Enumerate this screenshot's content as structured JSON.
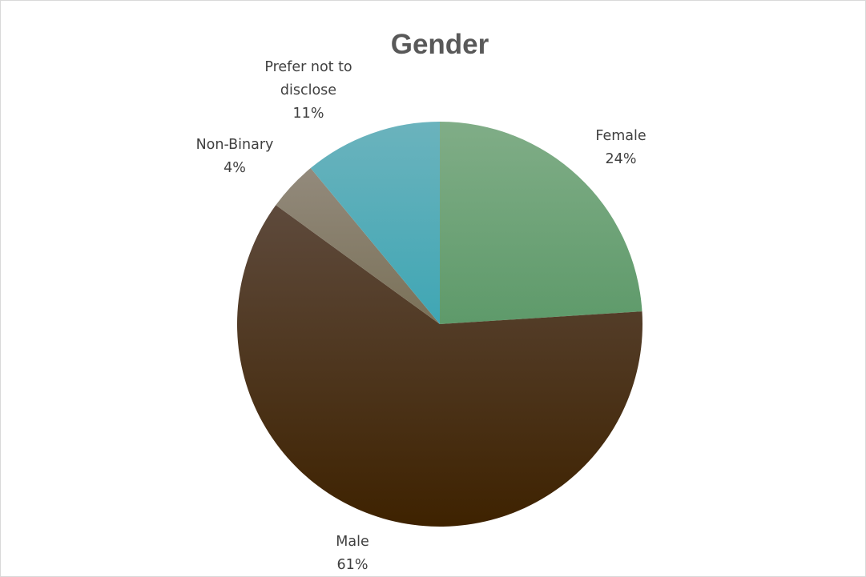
{
  "chart_data": {
    "type": "pie",
    "title": "Gender",
    "categories": [
      "Female",
      "Male",
      "Non-Binary",
      "Prefer not to disclose"
    ],
    "values": [
      24,
      61,
      4,
      11
    ],
    "value_format": "percent",
    "start_angle_deg": 0,
    "direction": "clockwise",
    "legend": "none",
    "slices": [
      {
        "name": "Female",
        "label_lines": [
          "Female"
        ],
        "percent_label": "24%",
        "color_top": "#80ad87",
        "color_bottom": "#5e9a6a"
      },
      {
        "name": "Male",
        "label_lines": [
          "Male"
        ],
        "percent_label": "61%",
        "color_top": "#5e4a3c",
        "color_bottom": "#3e2200"
      },
      {
        "name": "Non-Binary",
        "label_lines": [
          "Non-Binary"
        ],
        "percent_label": "4%",
        "color_top": "#938a7c",
        "color_bottom": "#7a7158"
      },
      {
        "name": "Prefer not to disclose",
        "label_lines": [
          "Prefer not to",
          "disclose"
        ],
        "percent_label": "11%",
        "color_top": "#6bb3bd",
        "color_bottom": "#3fa6b4"
      }
    ]
  }
}
